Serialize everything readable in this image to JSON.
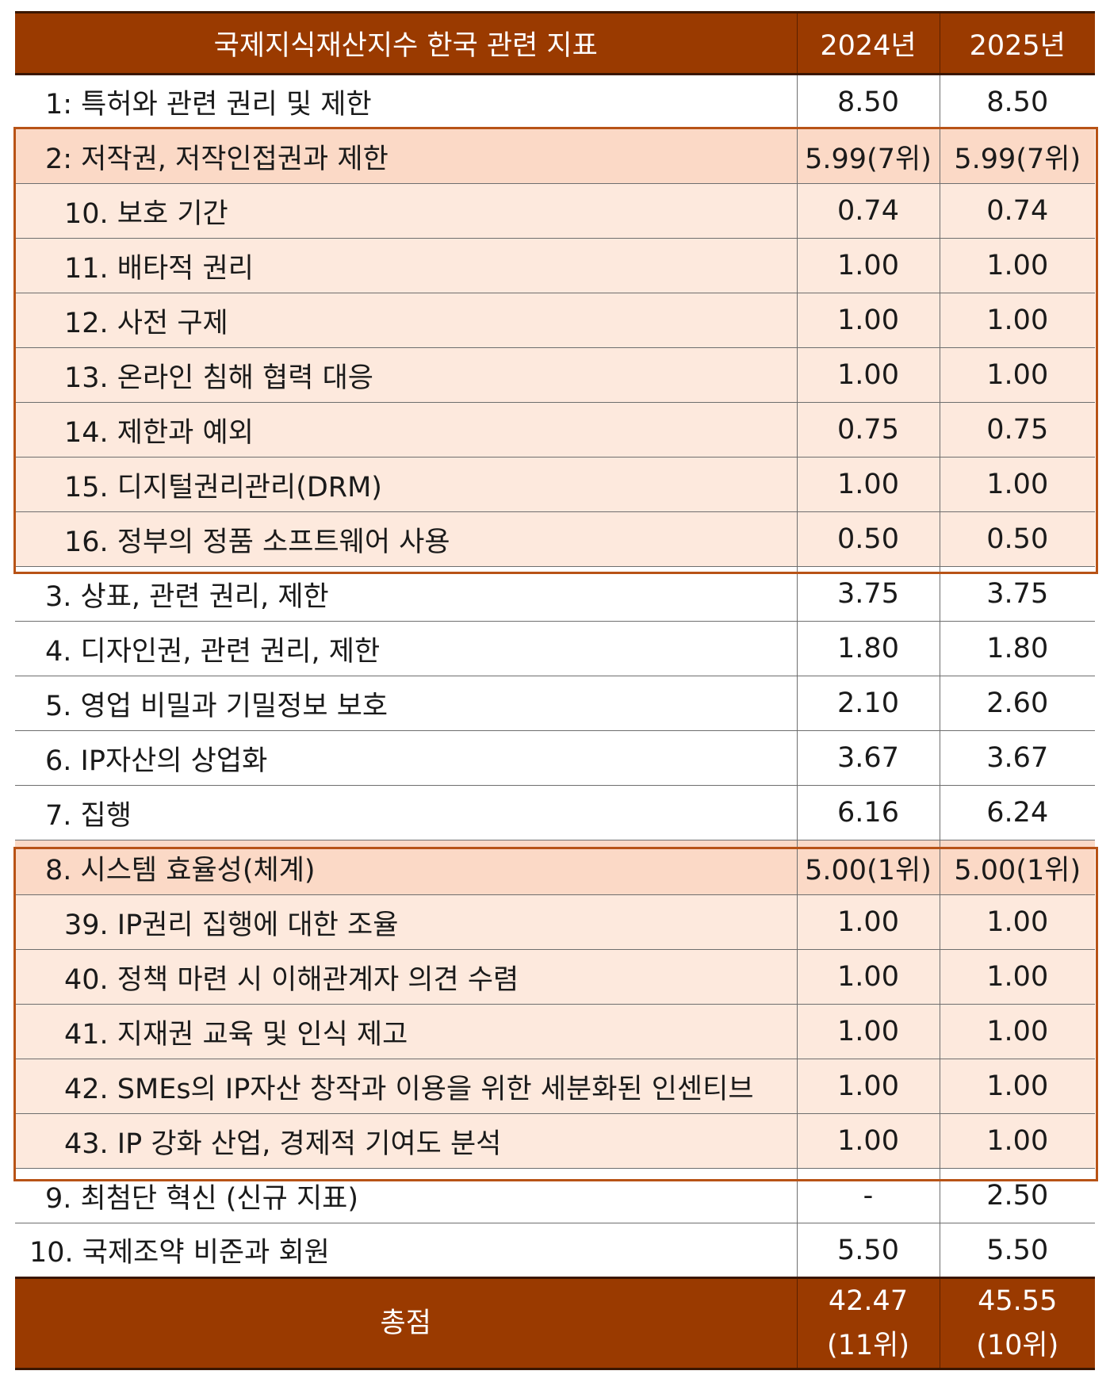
{
  "table": {
    "header": {
      "label": "국제지식재산지수 한국 관련 지표",
      "y2024": "2024년",
      "y2025": "2025년"
    },
    "rows": [
      {
        "label": "1: 특허와 관련 권리 및 제한",
        "y2024": "8.50",
        "y2025": "8.50"
      },
      {
        "label": "2: 저작권, 저작인접권과 제한",
        "y2024": "5.99(7위)",
        "y2025": "5.99(7위)"
      },
      {
        "label": "10. 보호 기간",
        "y2024": "0.74",
        "y2025": "0.74"
      },
      {
        "label": "11. 배타적 권리",
        "y2024": "1.00",
        "y2025": "1.00"
      },
      {
        "label": "12. 사전 구제",
        "y2024": "1.00",
        "y2025": "1.00"
      },
      {
        "label": "13. 온라인 침해 협력 대응",
        "y2024": "1.00",
        "y2025": "1.00"
      },
      {
        "label": "14. 제한과 예외",
        "y2024": "0.75",
        "y2025": "0.75"
      },
      {
        "label": "15. 디지털권리관리(DRM)",
        "y2024": "1.00",
        "y2025": "1.00"
      },
      {
        "label": "16. 정부의 정품 소프트웨어 사용",
        "y2024": "0.50",
        "y2025": "0.50"
      },
      {
        "label": "3. 상표, 관련 권리, 제한",
        "y2024": "3.75",
        "y2025": "3.75"
      },
      {
        "label": "4. 디자인권, 관련 권리, 제한",
        "y2024": "1.80",
        "y2025": "1.80"
      },
      {
        "label": "5. 영업 비밀과 기밀정보 보호",
        "y2024": "2.10",
        "y2025": "2.60"
      },
      {
        "label": "6. IP자산의 상업화",
        "y2024": "3.67",
        "y2025": "3.67"
      },
      {
        "label": "7. 집행",
        "y2024": "6.16",
        "y2025": "6.24"
      },
      {
        "label": "8. 시스템 효율성(체계)",
        "y2024": "5.00(1위)",
        "y2025": "5.00(1위)"
      },
      {
        "label": "39. IP권리 집행에 대한 조율",
        "y2024": "1.00",
        "y2025": "1.00"
      },
      {
        "label": "40. 정책 마련 시 이해관계자 의견 수렴",
        "y2024": "1.00",
        "y2025": "1.00"
      },
      {
        "label": "41. 지재권 교육 및 인식 제고",
        "y2024": "1.00",
        "y2025": "1.00"
      },
      {
        "label": "42. SMEs의 IP자산 창작과 이용을 위한 세분화된 인센티브",
        "y2024": "1.00",
        "y2025": "1.00"
      },
      {
        "label": "43. IP 강화 산업, 경제적 기여도 분석",
        "y2024": "1.00",
        "y2025": "1.00"
      },
      {
        "label": "9. 최첨단 혁신 (신규 지표)",
        "y2024": "-",
        "y2025": "2.50"
      },
      {
        "label": "10. 국제조약 비준과 회원",
        "y2024": "5.50",
        "y2025": "5.50"
      }
    ],
    "total": {
      "label": "총점",
      "y2024_score": "42.47",
      "y2024_rank": "(11위)",
      "y2025_score": "45.55",
      "y2025_rank": "(10위)"
    }
  },
  "colors": {
    "header_bg": "#9a3a00",
    "highlight_bg": "#fde9dd",
    "highlight_border": "#b85316"
  }
}
